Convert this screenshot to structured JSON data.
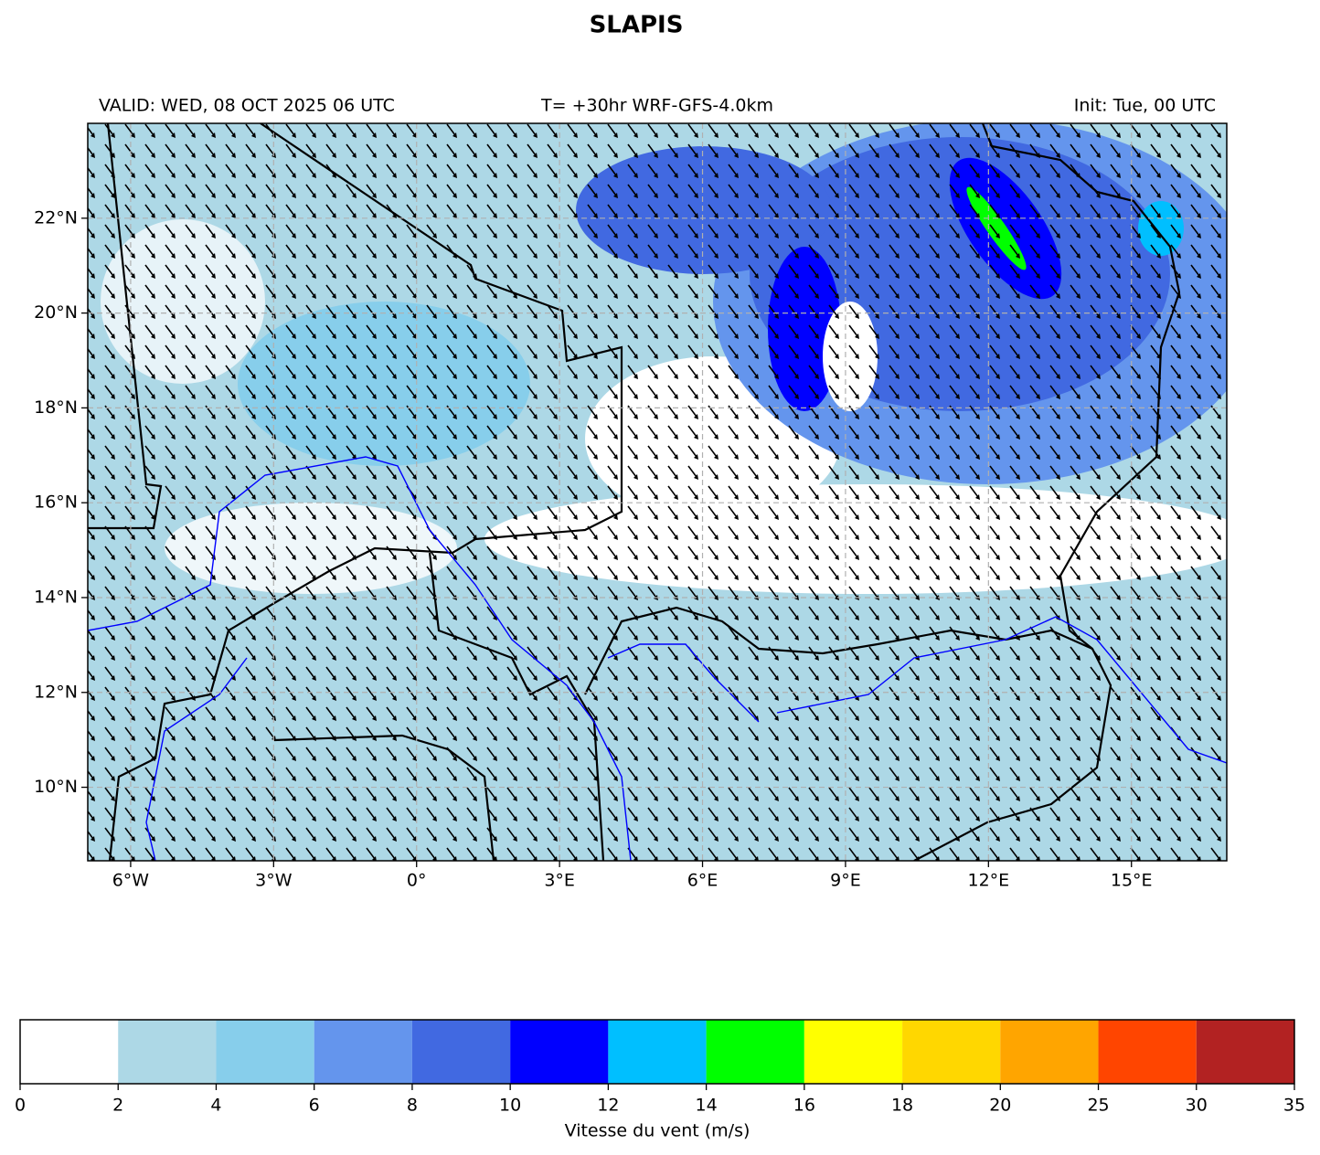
{
  "header": {
    "title": "SLAPIS",
    "valid": "VALID: WED, 08 OCT 2025 06 UTC",
    "run": "T= +30hr WRF-GFS-4.0km",
    "init": "Init: Tue, 00 UTC"
  },
  "map": {
    "xlim": [
      -6.9,
      17
    ],
    "ylim": [
      8.45,
      24
    ],
    "xticks": [
      {
        "value": -6,
        "label": "6°W"
      },
      {
        "value": -3,
        "label": "3°W"
      },
      {
        "value": 0,
        "label": "0°"
      },
      {
        "value": 3,
        "label": "3°E"
      },
      {
        "value": 6,
        "label": "6°E"
      },
      {
        "value": 9,
        "label": "9°E"
      },
      {
        "value": 12,
        "label": "12°E"
      },
      {
        "value": 15,
        "label": "15°E"
      }
    ],
    "yticks": [
      {
        "value": 10,
        "label": "10°N"
      },
      {
        "value": 12,
        "label": "12°N"
      },
      {
        "value": 14,
        "label": "14°N"
      },
      {
        "value": 16,
        "label": "16°N"
      },
      {
        "value": 18,
        "label": "18°N"
      },
      {
        "value": 20,
        "label": "20°N"
      },
      {
        "value": 22,
        "label": "22°N"
      }
    ],
    "grid": true
  },
  "colorbar": {
    "label": "Vitesse du vent (m/s)",
    "bounds": [
      0,
      2,
      4,
      6,
      8,
      10,
      12,
      14,
      16,
      18,
      20,
      25,
      30,
      35
    ],
    "colors": [
      "#ffffff",
      "#add8e6",
      "#87ceeb",
      "#6495ed",
      "#4169e1",
      "#0000ff",
      "#00bfff",
      "#00ff00",
      "#ffff00",
      "#ffd700",
      "#ffa500",
      "#ff4500",
      "#b22222"
    ]
  }
}
